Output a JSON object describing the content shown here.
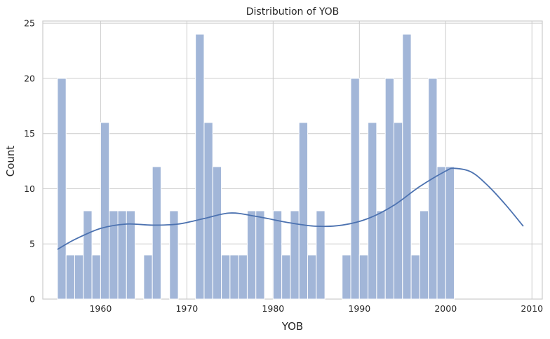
{
  "chart_data": {
    "type": "histogram",
    "title": "Distribution of YOB",
    "xlabel": "YOB",
    "ylabel": "Count",
    "xlim": [
      1953.3,
      2011.2
    ],
    "ylim": [
      0,
      25.2
    ],
    "xticks": [
      1960,
      1970,
      1980,
      1990,
      2000,
      2010
    ],
    "yticks": [
      0,
      5,
      10,
      15,
      20,
      25
    ],
    "bin_start": 1955,
    "bin_width": 1,
    "bins": [
      1955,
      1956,
      1957,
      1958,
      1959,
      1960,
      1961,
      1962,
      1963,
      1964,
      1965,
      1966,
      1967,
      1968,
      1969,
      1970,
      1971,
      1972,
      1973,
      1974,
      1975,
      1976,
      1977,
      1978,
      1979,
      1980,
      1981,
      1982,
      1983,
      1984,
      1985,
      1986,
      1987,
      1988,
      1989,
      1990,
      1991,
      1992,
      1993,
      1994,
      1995,
      1996,
      1997,
      1998,
      1999,
      2000,
      2001,
      2002,
      2003,
      2004,
      2005,
      2006,
      2007,
      2008
    ],
    "values": [
      20,
      4,
      4,
      8,
      4,
      16,
      8,
      8,
      8,
      0,
      4,
      12,
      0,
      8,
      0,
      0,
      24,
      16,
      12,
      4,
      4,
      4,
      8,
      8,
      0,
      8,
      4,
      8,
      16,
      4,
      8,
      0,
      0,
      4,
      20,
      4,
      16,
      8,
      20,
      16,
      24,
      4,
      8,
      20,
      12,
      12,
      0,
      0,
      0,
      0,
      0,
      0,
      0,
      0
    ],
    "kde": [
      [
        1955,
        4.5
      ],
      [
        1957,
        5.4
      ],
      [
        1960,
        6.4
      ],
      [
        1963,
        6.8
      ],
      [
        1966,
        6.7
      ],
      [
        1969,
        6.8
      ],
      [
        1972,
        7.3
      ],
      [
        1975,
        7.8
      ],
      [
        1978,
        7.5
      ],
      [
        1982,
        6.9
      ],
      [
        1985,
        6.6
      ],
      [
        1988,
        6.7
      ],
      [
        1991,
        7.3
      ],
      [
        1994,
        8.5
      ],
      [
        1997,
        10.2
      ],
      [
        2000,
        11.6
      ],
      [
        2001,
        11.85
      ],
      [
        2003,
        11.5
      ],
      [
        2005,
        10.2
      ],
      [
        2007,
        8.5
      ],
      [
        2009,
        6.6
      ]
    ],
    "grid": true,
    "bar_color": "#a2b6d8",
    "bar_edge_color": "#ffffff",
    "line_color": "#4c72b0",
    "grid_color": "#cccccc",
    "axes_edge_color": "#cccccc"
  }
}
